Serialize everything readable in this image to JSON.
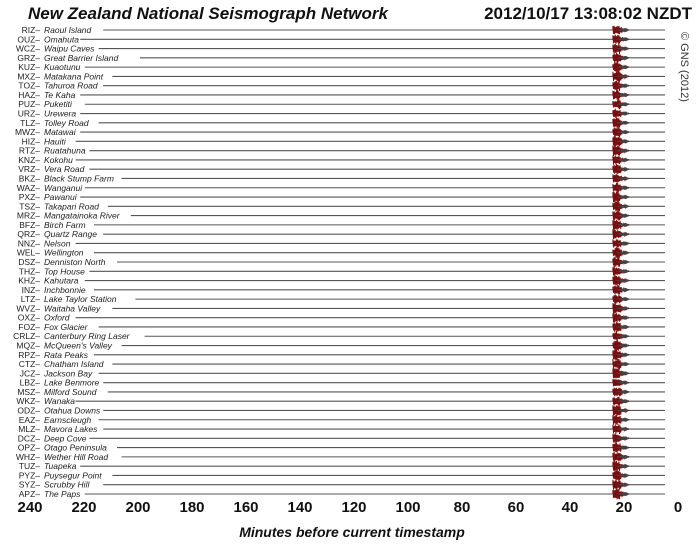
{
  "title": "New Zealand National Seismograph Network",
  "timestamp": "2012/10/17 13:08:02 NZDT",
  "copyright": "© GNS (2012)",
  "chart_data": {
    "type": "line",
    "xlabel": "Minutes before current timestamp",
    "xlim": [
      240,
      0
    ],
    "xticks": [
      240,
      220,
      200,
      180,
      160,
      140,
      120,
      100,
      80,
      60,
      40,
      20,
      0
    ],
    "event_minutes_before": 23,
    "colors": {
      "trace": "#555555",
      "event": "#7a0d0d"
    },
    "stations": [
      {
        "code": "RIZ",
        "name": "Raoul Island"
      },
      {
        "code": "OUZ",
        "name": "Omahuta"
      },
      {
        "code": "WCZ",
        "name": "Waipu Caves"
      },
      {
        "code": "GRZ",
        "name": "Great Barrier Island"
      },
      {
        "code": "KUZ",
        "name": "Kuaotunu"
      },
      {
        "code": "MXZ",
        "name": "Matakana Point"
      },
      {
        "code": "TOZ",
        "name": "Tahuroa Road"
      },
      {
        "code": "HAZ",
        "name": "Te Kaha"
      },
      {
        "code": "PUZ",
        "name": "Puketiti"
      },
      {
        "code": "URZ",
        "name": "Urewera"
      },
      {
        "code": "TLZ",
        "name": "Tolley Road"
      },
      {
        "code": "MWZ",
        "name": "Matawai"
      },
      {
        "code": "HIZ",
        "name": "Hauiti"
      },
      {
        "code": "RTZ",
        "name": "Ruatahuna"
      },
      {
        "code": "KNZ",
        "name": "Kokohu"
      },
      {
        "code": "VRZ",
        "name": "Vera Road"
      },
      {
        "code": "BKZ",
        "name": "Black Stump Farm"
      },
      {
        "code": "WAZ",
        "name": "Wanganui"
      },
      {
        "code": "PXZ",
        "name": "Pawanui"
      },
      {
        "code": "TSZ",
        "name": "Takapari Road"
      },
      {
        "code": "MRZ",
        "name": "Mangatainoka River"
      },
      {
        "code": "BFZ",
        "name": "Birch Farm"
      },
      {
        "code": "QRZ",
        "name": "Quartz Range"
      },
      {
        "code": "NNZ",
        "name": "Nelson"
      },
      {
        "code": "WEL",
        "name": "Wellington"
      },
      {
        "code": "DSZ",
        "name": "Denniston North"
      },
      {
        "code": "THZ",
        "name": "Top House"
      },
      {
        "code": "KHZ",
        "name": "Kahutara"
      },
      {
        "code": "INZ",
        "name": "Inchbonnie"
      },
      {
        "code": "LTZ",
        "name": "Lake Taylor Station"
      },
      {
        "code": "WVZ",
        "name": "Waitaha Valley"
      },
      {
        "code": "OXZ",
        "name": "Oxford"
      },
      {
        "code": "FOZ",
        "name": "Fox Glacier"
      },
      {
        "code": "CRLZ",
        "name": "Canterbury Ring Laser"
      },
      {
        "code": "MQZ",
        "name": "McQueen's Valley"
      },
      {
        "code": "RPZ",
        "name": "Rata Peaks"
      },
      {
        "code": "CTZ",
        "name": "Chatham Island"
      },
      {
        "code": "JCZ",
        "name": "Jackson Bay"
      },
      {
        "code": "LBZ",
        "name": "Lake Benmore"
      },
      {
        "code": "MSZ",
        "name": "Milford Sound"
      },
      {
        "code": "WKZ",
        "name": "Wanaka"
      },
      {
        "code": "ODZ",
        "name": "Otahua Downs"
      },
      {
        "code": "EAZ",
        "name": "Earnscleugh"
      },
      {
        "code": "MLZ",
        "name": "Mavora Lakes"
      },
      {
        "code": "DCZ",
        "name": "Deep Cove"
      },
      {
        "code": "OPZ",
        "name": "Otago Peninsula"
      },
      {
        "code": "WHZ",
        "name": "Wether Hill Road"
      },
      {
        "code": "TUZ",
        "name": "Tuapeka"
      },
      {
        "code": "PYZ",
        "name": "Puysegur Point"
      },
      {
        "code": "SYZ",
        "name": "Scrubby Hill"
      },
      {
        "code": "APZ",
        "name": "The Paps"
      }
    ]
  }
}
